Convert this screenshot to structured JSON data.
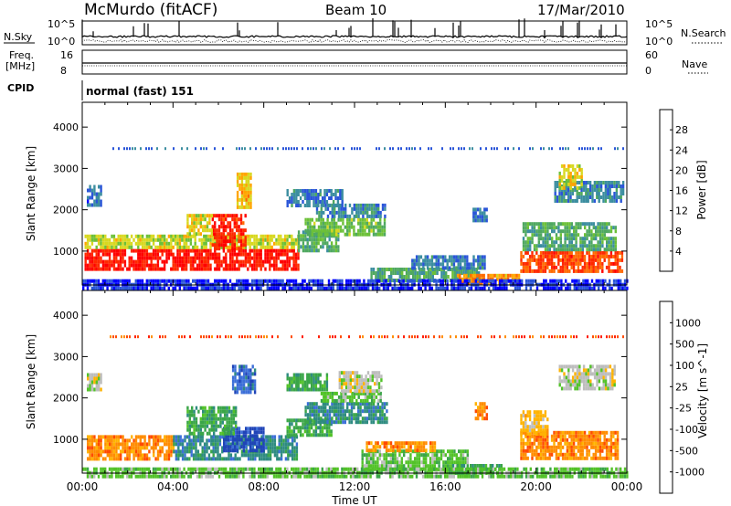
{
  "header": {
    "station": "McMurdo (fitACF)",
    "beam": "Beam 10",
    "date": "17/Mar/2010"
  },
  "top_panels": {
    "nsky_label": "N.Sky",
    "nsky_ticks": [
      "10^5",
      "10^0"
    ],
    "nsearch_label": "N.Search",
    "nsearch_ticks": [
      "10^5",
      "10^0"
    ],
    "freq_label_1": "Freq.",
    "freq_label_2": "[MHz]",
    "freq_ticks": [
      "16",
      "8"
    ],
    "nave_label": "Nave",
    "nave_ticks": [
      "60",
      "0"
    ],
    "cpid_label": "CPID",
    "cpid_value": "normal (fast) 151"
  },
  "chart_data": [
    {
      "type": "heatmap",
      "name": "power",
      "ylabel": "Slant Range [km]",
      "yticks": [
        "1000",
        "2000",
        "3000",
        "4000"
      ],
      "ylim": [
        180,
        4600
      ],
      "colorbar": {
        "label": "Power [dB]",
        "ticks": [
          "4",
          "8",
          "12",
          "16",
          "20",
          "24",
          "28"
        ],
        "range": [
          0,
          32
        ],
        "colors": [
          "#0000ff",
          "#2a55d8",
          "#3c8ea0",
          "#4fa860",
          "#6cc038",
          "#d8d820",
          "#ffa500",
          "#ff6a00",
          "#ff2a00",
          "#ff0000"
        ]
      },
      "regions": [
        {
          "t0": 0.1,
          "t1": 9.5,
          "r0": 550,
          "r1": 1050,
          "v": 29
        },
        {
          "t0": 0.1,
          "t1": 9.5,
          "r0": 1050,
          "r1": 1400,
          "v": 17
        },
        {
          "t0": 5.7,
          "t1": 7.2,
          "r0": 1100,
          "r1": 1900,
          "v": 28
        },
        {
          "t0": 4.6,
          "t1": 5.7,
          "r0": 1450,
          "r1": 1900,
          "v": 18
        },
        {
          "t0": 6.8,
          "t1": 7.4,
          "r0": 2100,
          "r1": 2900,
          "v": 20
        },
        {
          "t0": 9.5,
          "t1": 11.3,
          "r0": 1000,
          "r1": 1500,
          "v": 11
        },
        {
          "t0": 9.8,
          "t1": 13.3,
          "r0": 1400,
          "r1": 1800,
          "v": 14
        },
        {
          "t0": 10.3,
          "t1": 13.3,
          "r0": 1800,
          "r1": 2150,
          "v": 8
        },
        {
          "t0": 9.0,
          "t1": 11.5,
          "r0": 2100,
          "r1": 2500,
          "v": 7
        },
        {
          "t0": 12.7,
          "t1": 17.5,
          "r0": 300,
          "r1": 600,
          "v": 11
        },
        {
          "t0": 14.5,
          "t1": 17.7,
          "r0": 550,
          "r1": 900,
          "v": 7
        },
        {
          "t0": 16.5,
          "t1": 19.3,
          "r0": 200,
          "r1": 450,
          "v": 22
        },
        {
          "t0": 19.3,
          "t1": 23.8,
          "r0": 550,
          "r1": 1000,
          "v": 26
        },
        {
          "t0": 19.4,
          "t1": 23.5,
          "r0": 1000,
          "r1": 1700,
          "v": 11
        },
        {
          "t0": 20.8,
          "t1": 23.8,
          "r0": 2200,
          "r1": 2700,
          "v": 8
        },
        {
          "t0": 21.0,
          "t1": 22.0,
          "r0": 2500,
          "r1": 3100,
          "v": 18
        },
        {
          "t0": 0.2,
          "t1": 0.8,
          "r0": 2100,
          "r1": 2600,
          "v": 6
        },
        {
          "t0": 17.2,
          "t1": 17.8,
          "r0": 1700,
          "r1": 2050,
          "v": 7
        },
        {
          "t0": 0.0,
          "t1": 24.0,
          "r0": 120,
          "r1": 320,
          "v": 3
        }
      ],
      "range_lines": [
        {
          "r": 3480,
          "v": 6
        }
      ]
    },
    {
      "type": "heatmap",
      "name": "velocity",
      "ylabel": "Slant Range [km]",
      "xlabel": "Time UT",
      "xticks": [
        "00:00",
        "04:00",
        "08:00",
        "12:00",
        "16:00",
        "20:00",
        "00:00"
      ],
      "yticks": [
        "1000",
        "2000",
        "3000",
        "4000"
      ],
      "ylim": [
        180,
        4600
      ],
      "colorbar": {
        "label": "Velocity [m s^-1]",
        "ticks": [
          "1000",
          "500",
          "100",
          "25",
          "-25",
          "-100",
          "-500",
          "-1000"
        ],
        "colors": [
          "#2044b8",
          "#3c6fd8",
          "#2e8b80",
          "#3aa548",
          "#52c228",
          "#bdbdbd",
          "#ffb300",
          "#ff8c00",
          "#ff4a00",
          "#ff1a00"
        ]
      },
      "regions": [
        {
          "t0": 0.2,
          "t1": 4.0,
          "r0": 550,
          "r1": 1100,
          "v": 7
        },
        {
          "t0": 4.0,
          "t1": 9.5,
          "r0": 550,
          "r1": 1100,
          "v": 2
        },
        {
          "t0": 6.2,
          "t1": 8.0,
          "r0": 700,
          "r1": 1300,
          "v": 0
        },
        {
          "t0": 4.6,
          "t1": 6.8,
          "r0": 1100,
          "r1": 1800,
          "v": 3
        },
        {
          "t0": 6.6,
          "t1": 7.6,
          "r0": 2100,
          "r1": 2800,
          "v": 1
        },
        {
          "t0": 9.0,
          "t1": 11.0,
          "r0": 1100,
          "r1": 1500,
          "v": 3
        },
        {
          "t0": 9.8,
          "t1": 13.4,
          "r0": 1400,
          "r1": 1900,
          "v": 2
        },
        {
          "t0": 10.5,
          "t1": 13.2,
          "r0": 1900,
          "r1": 2150,
          "v": 4
        },
        {
          "t0": 11.3,
          "t1": 13.2,
          "r0": 2200,
          "r1": 2650,
          "v": 5
        },
        {
          "t0": 9.0,
          "t1": 10.8,
          "r0": 2200,
          "r1": 2600,
          "v": 3
        },
        {
          "t0": 12.3,
          "t1": 17.0,
          "r0": 300,
          "r1": 750,
          "v": 4
        },
        {
          "t0": 12.5,
          "t1": 15.5,
          "r0": 700,
          "r1": 950,
          "v": 7
        },
        {
          "t0": 16.3,
          "t1": 18.5,
          "r0": 150,
          "r1": 400,
          "v": 3
        },
        {
          "t0": 17.3,
          "t1": 17.8,
          "r0": 1500,
          "r1": 1900,
          "v": 7
        },
        {
          "t0": 19.3,
          "t1": 23.6,
          "r0": 550,
          "r1": 1200,
          "v": 7
        },
        {
          "t0": 19.3,
          "t1": 20.5,
          "r0": 1100,
          "r1": 1700,
          "v": 6
        },
        {
          "t0": 21.0,
          "t1": 23.5,
          "r0": 2250,
          "r1": 2800,
          "v": 5
        },
        {
          "t0": 0.2,
          "t1": 0.8,
          "r0": 2200,
          "r1": 2600,
          "v": 5
        },
        {
          "t0": 0.0,
          "t1": 24.0,
          "r0": 120,
          "r1": 320,
          "v": 4
        }
      ],
      "range_lines": [
        {
          "r": 3480,
          "v": 8
        }
      ]
    }
  ]
}
